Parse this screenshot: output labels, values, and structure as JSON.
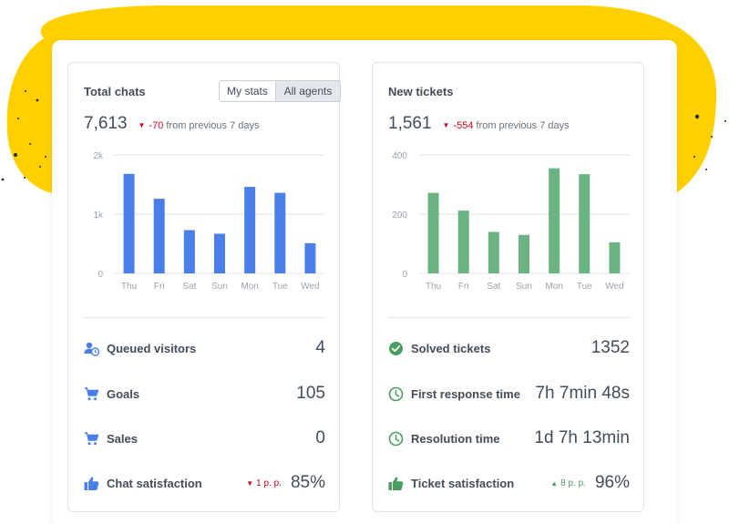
{
  "colors": {
    "accent_blue": "#4a7ee8",
    "accent_green": "#6cb383",
    "decor_yellow": "#ffd000",
    "down_red": "#d0021b",
    "up_green": "#4a9d62"
  },
  "left": {
    "title": "Total chats",
    "toggle": {
      "my_stats": "My stats",
      "all_agents": "All agents",
      "selected": "All agents"
    },
    "total": "7,613",
    "delta": {
      "value": "-70",
      "text": "from previous 7 days",
      "direction": "down"
    },
    "stats": [
      {
        "icon": "queued-visitors-icon",
        "label": "Queued visitors",
        "value": "4"
      },
      {
        "icon": "cart-icon",
        "label": "Goals",
        "value": "105"
      },
      {
        "icon": "cart-icon",
        "label": "Sales",
        "value": "0"
      },
      {
        "icon": "thumbs-up-icon",
        "label": "Chat satisfaction",
        "value": "85%",
        "change": "1 p. p.",
        "change_direction": "down"
      }
    ]
  },
  "right": {
    "title": "New tickets",
    "total": "1,561",
    "delta": {
      "value": "-554",
      "text": "from previous 7 days",
      "direction": "down"
    },
    "stats": [
      {
        "icon": "check-circle-icon",
        "label": "Solved tickets",
        "value": "1352"
      },
      {
        "icon": "clock-icon",
        "label": "First response time",
        "value": "7h 7min 48s"
      },
      {
        "icon": "clock-icon",
        "label": "Resolution time",
        "value": "1d 7h 13min"
      },
      {
        "icon": "thumbs-up-icon",
        "label": "Ticket satisfaction",
        "value": "96%",
        "change": "8 p. p.",
        "change_direction": "up"
      }
    ]
  },
  "chart_data": [
    {
      "type": "bar",
      "categories": [
        "Thu",
        "Fri",
        "Sat",
        "Sun",
        "Mon",
        "Tue",
        "Wed"
      ],
      "values": [
        1680,
        1260,
        730,
        670,
        1460,
        1360,
        510
      ],
      "yticks": [
        "0",
        "1k",
        "2k"
      ],
      "ylim": [
        0,
        2000
      ],
      "color": "#4a7ee8",
      "grid": true
    },
    {
      "type": "bar",
      "categories": [
        "Thu",
        "Fri",
        "Sat",
        "Sun",
        "Mon",
        "Tue",
        "Wed"
      ],
      "values": [
        272,
        212,
        140,
        130,
        355,
        335,
        105
      ],
      "yticks": [
        "0",
        "200",
        "400"
      ],
      "ylim": [
        0,
        400
      ],
      "color": "#6cb383",
      "grid": true
    }
  ]
}
